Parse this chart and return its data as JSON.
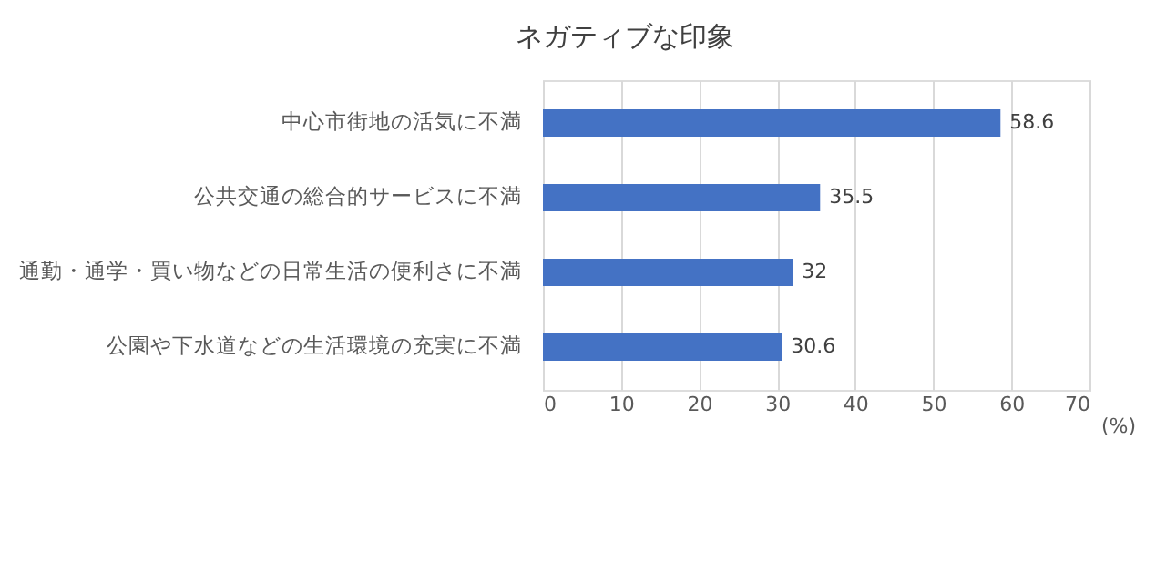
{
  "chart_data": {
    "type": "bar",
    "orientation": "horizontal",
    "title": "ネガティブな印象",
    "xlabel": "(%)",
    "categories": [
      "中心市街地の活気に不満",
      "公共交通の総合的サービスに不満",
      "通勤・通学・買い物などの日常生活の便利さに不満",
      "公園や下水道などの生活環境の充実に不満"
    ],
    "values": [
      58.6,
      35.5,
      32,
      30.6
    ],
    "color": "#4472c4",
    "data_labels": true,
    "xlim": [
      0,
      70
    ],
    "xticks": [
      0,
      10,
      20,
      30,
      40,
      50,
      60,
      70
    ],
    "grid": "x"
  }
}
